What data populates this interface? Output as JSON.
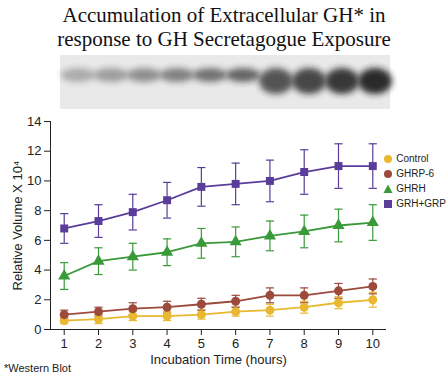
{
  "chart_data": {
    "type": "line",
    "title": "Accumulation of Extracellular GH* in response to GH Secretagogue Exposure",
    "x_label": "Incubation Time (hours)",
    "y_label": "Relative Volume X 10⁴",
    "annotation": "*Western Blot",
    "x": [
      1,
      2,
      3,
      4,
      5,
      6,
      7,
      8,
      9,
      10
    ],
    "xlim": [
      0.6,
      10.4
    ],
    "xticks": [
      1,
      2,
      3,
      4,
      5,
      6,
      7,
      8,
      9,
      10
    ],
    "ylim": [
      0,
      14
    ],
    "yticks": [
      0,
      2,
      4,
      6,
      8,
      10,
      12,
      14
    ],
    "grid": false,
    "legend": "right",
    "series": [
      {
        "name": "Control",
        "color": "#e8b830",
        "marker": "circle",
        "values": [
          0.6,
          0.7,
          0.9,
          0.9,
          1.0,
          1.2,
          1.3,
          1.5,
          1.8,
          2.0
        ],
        "errors": [
          0.2,
          0.3,
          0.3,
          0.3,
          0.3,
          0.3,
          0.4,
          0.4,
          0.4,
          0.5
        ]
      },
      {
        "name": "GHRP-6",
        "color": "#9b4a3c",
        "marker": "circle",
        "values": [
          1.0,
          1.2,
          1.4,
          1.5,
          1.7,
          1.9,
          2.3,
          2.3,
          2.6,
          2.9
        ],
        "errors": [
          0.3,
          0.3,
          0.4,
          0.4,
          0.4,
          0.4,
          0.5,
          0.5,
          0.5,
          0.5
        ]
      },
      {
        "name": "GHRH",
        "color": "#3a9a3a",
        "marker": "triangle",
        "values": [
          3.6,
          4.6,
          4.9,
          5.2,
          5.8,
          5.9,
          6.3,
          6.6,
          7.0,
          7.2
        ],
        "errors": [
          0.9,
          0.9,
          0.9,
          0.9,
          1.0,
          1.0,
          1.0,
          1.1,
          1.1,
          1.2
        ]
      },
      {
        "name": "GRH+GRP",
        "color": "#5a3d9a",
        "marker": "square",
        "values": [
          6.8,
          7.3,
          7.9,
          8.7,
          9.6,
          9.8,
          10.0,
          10.6,
          11.0,
          11.0
        ],
        "errors": [
          1.0,
          1.1,
          1.2,
          1.2,
          1.3,
          1.4,
          1.4,
          1.5,
          1.5,
          1.5
        ]
      }
    ]
  }
}
